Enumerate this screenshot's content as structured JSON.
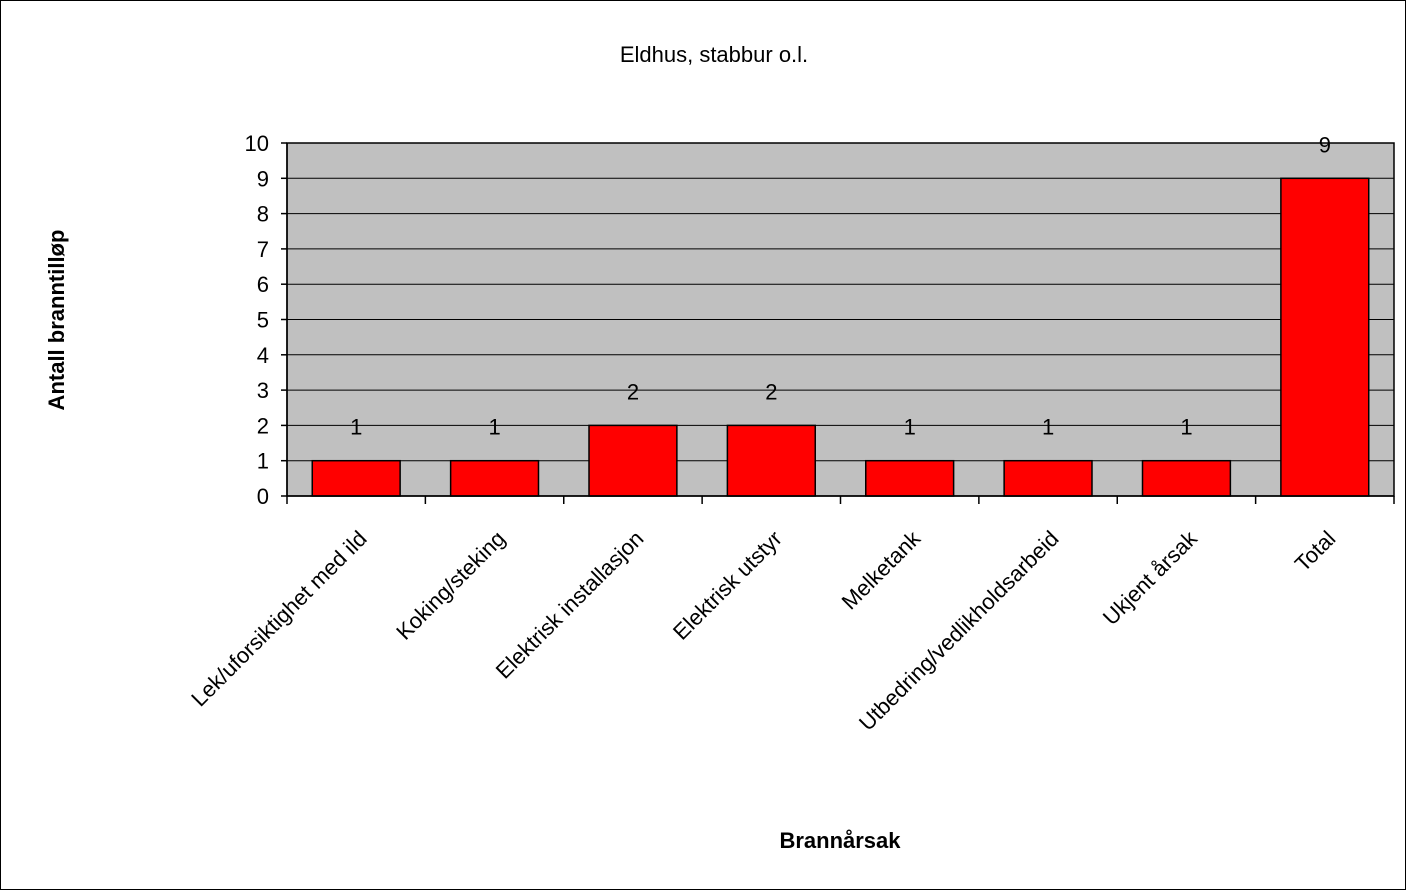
{
  "chart_data": {
    "type": "bar",
    "title": "Eldhus, stabbur o.l.",
    "xlabel": "Brannårsak",
    "ylabel": "Antall branntilløp",
    "categories": [
      "Lek/uforsiktighet med ild",
      "Koking/steking",
      "Elektrisk installasjon",
      "Elektrisk utstyr",
      "Melketank",
      "Utbedring/vedlikholdsarbeid",
      "Ukjent årsak",
      "Total"
    ],
    "values": [
      1,
      1,
      2,
      2,
      1,
      1,
      1,
      9
    ],
    "data_labels": [
      "1",
      "1",
      "2",
      "2",
      "1",
      "1",
      "1",
      "9"
    ],
    "ylim": [
      0,
      10
    ],
    "yticks": [
      "0",
      "1",
      "2",
      "3",
      "4",
      "5",
      "6",
      "7",
      "8",
      "9",
      "10"
    ],
    "grid": true,
    "legend": "none",
    "colors": {
      "bar": "#ff0000",
      "plot_background": "#c0c0c0",
      "gridline": "#000000",
      "frame": "#000000"
    }
  }
}
